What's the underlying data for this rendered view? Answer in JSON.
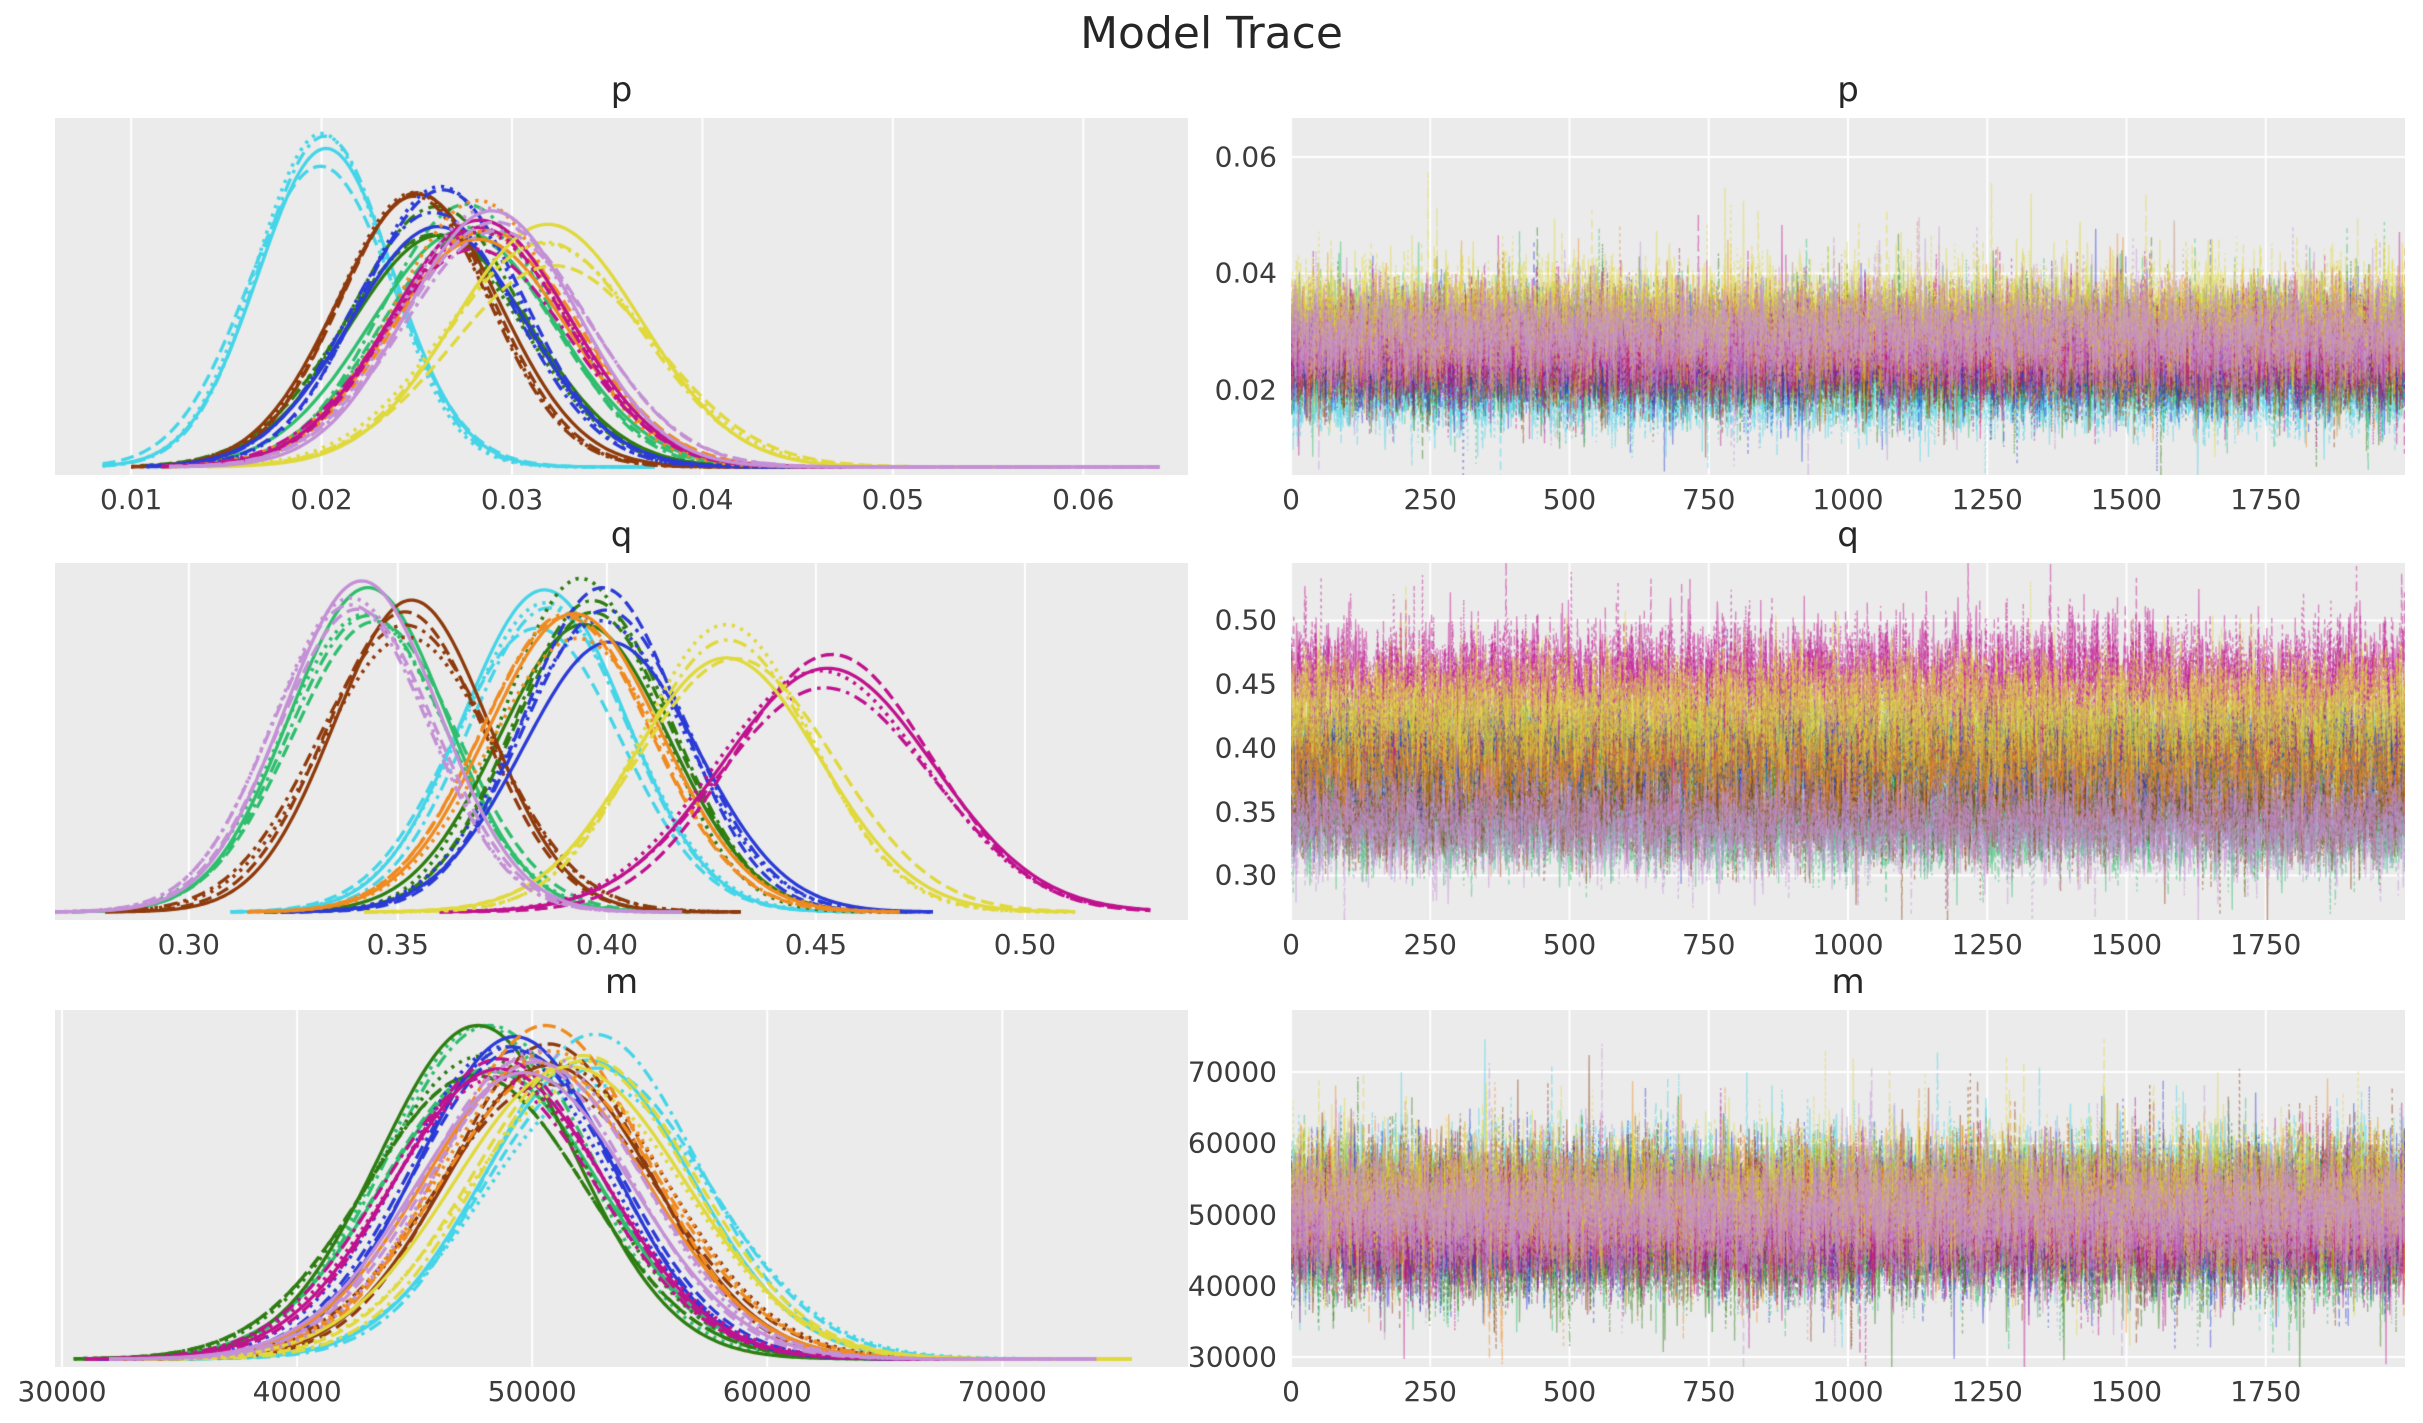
{
  "title": "Model Trace",
  "style": {
    "fig_bg": "#ffffff",
    "axes_bg": "#ebebeb",
    "grid_color": "#ffffff",
    "text_color": "#3c3c3c",
    "title_color": "#262626"
  },
  "linestyles": [
    "solid",
    "dashed",
    "dotted",
    "dashdot"
  ],
  "palette": [
    {
      "name": "cyan",
      "hex": "#45d5e8"
    },
    {
      "name": "emerald",
      "hex": "#2fbe6e"
    },
    {
      "name": "green",
      "hex": "#2e7d12"
    },
    {
      "name": "brown",
      "hex": "#8e3a0c"
    },
    {
      "name": "blue",
      "hex": "#2b3bd6"
    },
    {
      "name": "orange",
      "hex": "#ef8b20"
    },
    {
      "name": "magenta",
      "hex": "#c0128e"
    },
    {
      "name": "yellow",
      "hex": "#e0d93c"
    },
    {
      "name": "plum",
      "hex": "#c490d6"
    }
  ],
  "chart_data": [
    {
      "id": "p-density",
      "type": "line",
      "kind": "kde",
      "title": "p",
      "xlim": [
        0.006,
        0.0655
      ],
      "grid": "vertical",
      "legend": "none",
      "xticks": {
        "values": [
          0.01,
          0.02,
          0.03,
          0.04,
          0.05,
          0.06
        ],
        "labels": [
          "0.01",
          "0.02",
          "0.03",
          "0.04",
          "0.05",
          "0.06"
        ]
      },
      "series": [
        {
          "name": "chain-cyan",
          "color": "#45d5e8",
          "mean": 0.02,
          "sd": 0.0036,
          "xmin": 0.0085,
          "xmax": 0.0375
        },
        {
          "name": "chain-emerald",
          "color": "#2fbe6e",
          "mean": 0.0278,
          "sd": 0.0046,
          "xmin": 0.0115,
          "xmax": 0.047
        },
        {
          "name": "chain-green",
          "color": "#2e7d12",
          "mean": 0.0262,
          "sd": 0.0045,
          "xmin": 0.0105,
          "xmax": 0.045
        },
        {
          "name": "chain-brown",
          "color": "#8e3a0c",
          "mean": 0.0252,
          "sd": 0.0042,
          "xmin": 0.01,
          "xmax": 0.044
        },
        {
          "name": "chain-blue",
          "color": "#2b3bd6",
          "mean": 0.026,
          "sd": 0.0044,
          "xmin": 0.0108,
          "xmax": 0.0455
        },
        {
          "name": "chain-orange",
          "color": "#ef8b20",
          "mean": 0.0283,
          "sd": 0.0046,
          "xmin": 0.0118,
          "xmax": 0.048
        },
        {
          "name": "chain-magenta",
          "color": "#c0128e",
          "mean": 0.028,
          "sd": 0.0046,
          "xmin": 0.0116,
          "xmax": 0.0475
        },
        {
          "name": "chain-yellow",
          "color": "#e0d93c",
          "mean": 0.032,
          "sd": 0.005,
          "xmin": 0.014,
          "xmax": 0.0585
        },
        {
          "name": "chain-plum",
          "color": "#c490d6",
          "mean": 0.029,
          "sd": 0.0047,
          "xmin": 0.012,
          "xmax": 0.064
        }
      ]
    },
    {
      "id": "p-trace",
      "type": "line",
      "kind": "trace",
      "title": "p",
      "xlim": [
        0,
        2000
      ],
      "ylim": [
        0.0054,
        0.0667
      ],
      "n_draws": 2000,
      "grid": "both",
      "legend": "none",
      "xticks": {
        "values": [
          0,
          250,
          500,
          750,
          1000,
          1250,
          1500,
          1750
        ],
        "labels": [
          "0",
          "250",
          "500",
          "750",
          "1000",
          "1250",
          "1500",
          "1750"
        ]
      },
      "yticks": {
        "values": [
          0.02,
          0.04,
          0.06
        ],
        "labels": [
          "0.02",
          "0.04",
          "0.06"
        ]
      },
      "series": [
        {
          "name": "chain-cyan",
          "color": "#45d5e8",
          "mean": 0.02,
          "sd": 0.0036
        },
        {
          "name": "chain-emerald",
          "color": "#2fbe6e",
          "mean": 0.0278,
          "sd": 0.0046
        },
        {
          "name": "chain-green",
          "color": "#2e7d12",
          "mean": 0.0262,
          "sd": 0.0045
        },
        {
          "name": "chain-brown",
          "color": "#8e3a0c",
          "mean": 0.0252,
          "sd": 0.0042
        },
        {
          "name": "chain-blue",
          "color": "#2b3bd6",
          "mean": 0.026,
          "sd": 0.0044
        },
        {
          "name": "chain-orange",
          "color": "#ef8b20",
          "mean": 0.0283,
          "sd": 0.0046
        },
        {
          "name": "chain-magenta",
          "color": "#c0128e",
          "mean": 0.028,
          "sd": 0.0046
        },
        {
          "name": "chain-yellow",
          "color": "#e0d93c",
          "mean": 0.032,
          "sd": 0.005
        },
        {
          "name": "chain-plum",
          "color": "#c490d6",
          "mean": 0.029,
          "sd": 0.0047
        }
      ]
    },
    {
      "id": "q-density",
      "type": "line",
      "kind": "kde",
      "title": "q",
      "xlim": [
        0.268,
        0.539
      ],
      "grid": "vertical",
      "legend": "none",
      "xticks": {
        "values": [
          0.3,
          0.35,
          0.4,
          0.45,
          0.5
        ],
        "labels": [
          "0.30",
          "0.35",
          "0.40",
          "0.45",
          "0.50"
        ]
      },
      "series": [
        {
          "name": "chain-cyan",
          "color": "#45d5e8",
          "mean": 0.385,
          "sd": 0.019,
          "xmin": 0.31,
          "xmax": 0.462
        },
        {
          "name": "chain-emerald",
          "color": "#2fbe6e",
          "mean": 0.343,
          "sd": 0.019,
          "xmin": 0.272,
          "xmax": 0.42
        },
        {
          "name": "chain-green",
          "color": "#2e7d12",
          "mean": 0.395,
          "sd": 0.0195,
          "xmin": 0.318,
          "xmax": 0.472
        },
        {
          "name": "chain-brown",
          "color": "#8e3a0c",
          "mean": 0.353,
          "sd": 0.0195,
          "xmin": 0.28,
          "xmax": 0.432
        },
        {
          "name": "chain-blue",
          "color": "#2b3bd6",
          "mean": 0.4,
          "sd": 0.02,
          "xmin": 0.322,
          "xmax": 0.478
        },
        {
          "name": "chain-orange",
          "color": "#ef8b20",
          "mean": 0.392,
          "sd": 0.02,
          "xmin": 0.314,
          "xmax": 0.47
        },
        {
          "name": "chain-magenta",
          "color": "#c0128e",
          "mean": 0.452,
          "sd": 0.024,
          "xmin": 0.36,
          "xmax": 0.53
        },
        {
          "name": "chain-yellow",
          "color": "#e0d93c",
          "mean": 0.43,
          "sd": 0.022,
          "xmin": 0.342,
          "xmax": 0.512
        },
        {
          "name": "chain-plum",
          "color": "#c490d6",
          "mean": 0.34,
          "sd": 0.019,
          "xmin": 0.268,
          "xmax": 0.418
        }
      ]
    },
    {
      "id": "q-trace",
      "type": "line",
      "kind": "trace",
      "title": "q",
      "xlim": [
        0,
        2000
      ],
      "ylim": [
        0.265,
        0.545
      ],
      "n_draws": 2000,
      "grid": "both",
      "legend": "none",
      "xticks": {
        "values": [
          0,
          250,
          500,
          750,
          1000,
          1250,
          1500,
          1750
        ],
        "labels": [
          "0",
          "250",
          "500",
          "750",
          "1000",
          "1250",
          "1500",
          "1750"
        ]
      },
      "yticks": {
        "values": [
          0.3,
          0.35,
          0.4,
          0.45,
          0.5
        ],
        "labels": [
          "0.30",
          "0.35",
          "0.40",
          "0.45",
          "0.50"
        ]
      },
      "series": [
        {
          "name": "chain-cyan",
          "color": "#45d5e8",
          "mean": 0.385,
          "sd": 0.019
        },
        {
          "name": "chain-emerald",
          "color": "#2fbe6e",
          "mean": 0.343,
          "sd": 0.019
        },
        {
          "name": "chain-green",
          "color": "#2e7d12",
          "mean": 0.395,
          "sd": 0.0195
        },
        {
          "name": "chain-brown",
          "color": "#8e3a0c",
          "mean": 0.353,
          "sd": 0.0195
        },
        {
          "name": "chain-blue",
          "color": "#2b3bd6",
          "mean": 0.4,
          "sd": 0.02
        },
        {
          "name": "chain-orange",
          "color": "#ef8b20",
          "mean": 0.392,
          "sd": 0.02
        },
        {
          "name": "chain-magenta",
          "color": "#c0128e",
          "mean": 0.452,
          "sd": 0.024
        },
        {
          "name": "chain-yellow",
          "color": "#e0d93c",
          "mean": 0.43,
          "sd": 0.022
        },
        {
          "name": "chain-plum",
          "color": "#c490d6",
          "mean": 0.34,
          "sd": 0.019
        }
      ]
    },
    {
      "id": "m-density",
      "type": "line",
      "kind": "kde",
      "title": "m",
      "xlim": [
        29700,
        77900
      ],
      "grid": "vertical",
      "legend": "none",
      "xticks": {
        "values": [
          30000,
          40000,
          50000,
          60000,
          70000
        ],
        "labels": [
          "30000",
          "40000",
          "50000",
          "60000",
          "70000"
        ]
      },
      "series": [
        {
          "name": "chain-cyan",
          "color": "#45d5e8",
          "mean": 52500,
          "sd": 4600,
          "xmin": 34500,
          "xmax": 72500
        },
        {
          "name": "chain-emerald",
          "color": "#2fbe6e",
          "mean": 48000,
          "sd": 4400,
          "xmin": 31000,
          "xmax": 66500
        },
        {
          "name": "chain-green",
          "color": "#2e7d12",
          "mean": 47500,
          "sd": 4400,
          "xmin": 30500,
          "xmax": 66000
        },
        {
          "name": "chain-brown",
          "color": "#8e3a0c",
          "mean": 51000,
          "sd": 4500,
          "xmin": 33000,
          "xmax": 70500
        },
        {
          "name": "chain-blue",
          "color": "#2b3bd6",
          "mean": 49000,
          "sd": 4400,
          "xmin": 31500,
          "xmax": 67500
        },
        {
          "name": "chain-orange",
          "color": "#ef8b20",
          "mean": 50500,
          "sd": 4500,
          "xmin": 32500,
          "xmax": 70000
        },
        {
          "name": "chain-magenta",
          "color": "#c0128e",
          "mean": 48500,
          "sd": 4500,
          "xmin": 31000,
          "xmax": 67500
        },
        {
          "name": "chain-yellow",
          "color": "#e0d93c",
          "mean": 52000,
          "sd": 4700,
          "xmin": 33500,
          "xmax": 75500
        },
        {
          "name": "chain-plum",
          "color": "#c490d6",
          "mean": 50000,
          "sd": 4600,
          "xmin": 32000,
          "xmax": 74000
        }
      ]
    },
    {
      "id": "m-trace",
      "type": "line",
      "kind": "trace",
      "title": "m",
      "xlim": [
        0,
        2000
      ],
      "ylim": [
        28600,
        78700
      ],
      "n_draws": 2000,
      "grid": "both",
      "legend": "none",
      "xticks": {
        "values": [
          0,
          250,
          500,
          750,
          1000,
          1250,
          1500,
          1750
        ],
        "labels": [
          "0",
          "250",
          "500",
          "750",
          "1000",
          "1250",
          "1500",
          "1750"
        ]
      },
      "yticks": {
        "values": [
          30000,
          40000,
          50000,
          60000,
          70000
        ],
        "labels": [
          "30000",
          "40000",
          "50000",
          "60000",
          "70000"
        ]
      },
      "series": [
        {
          "name": "chain-cyan",
          "color": "#45d5e8",
          "mean": 52500,
          "sd": 4600
        },
        {
          "name": "chain-emerald",
          "color": "#2fbe6e",
          "mean": 48000,
          "sd": 4400
        },
        {
          "name": "chain-green",
          "color": "#2e7d12",
          "mean": 47500,
          "sd": 4400
        },
        {
          "name": "chain-brown",
          "color": "#8e3a0c",
          "mean": 51000,
          "sd": 4500
        },
        {
          "name": "chain-blue",
          "color": "#2b3bd6",
          "mean": 49000,
          "sd": 4400
        },
        {
          "name": "chain-orange",
          "color": "#ef8b20",
          "mean": 50500,
          "sd": 4500
        },
        {
          "name": "chain-magenta",
          "color": "#c0128e",
          "mean": 48500,
          "sd": 4500
        },
        {
          "name": "chain-yellow",
          "color": "#e0d93c",
          "mean": 52000,
          "sd": 4700
        },
        {
          "name": "chain-plum",
          "color": "#c490d6",
          "mean": 50000,
          "sd": 4600
        }
      ]
    }
  ]
}
